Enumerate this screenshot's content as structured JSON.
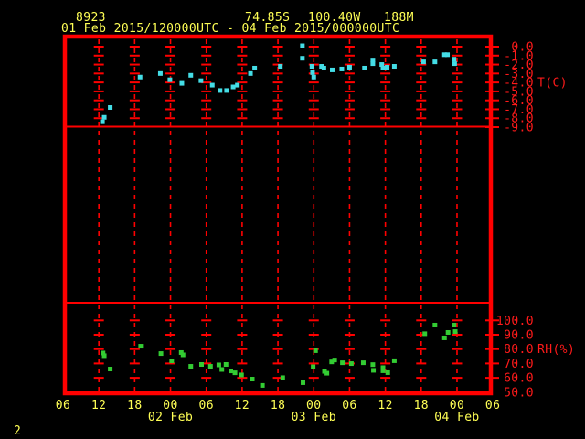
{
  "header": {
    "station_id": "8923",
    "latitude": "74.85S",
    "longitude": "100.40W",
    "elevation": "188M",
    "time_range": "01 Feb 2015/120000UTC - 04 Feb 2015/000000UTC"
  },
  "page_number": "2",
  "colors": {
    "background": "#000000",
    "axis": "#FF0000",
    "axis_text": "#FF1A1A",
    "label_yellow": "#FFFF55",
    "temperature_series": "#44DDE6",
    "humidity_series": "#33CC33"
  },
  "x_axis": {
    "hour_labels": [
      "06",
      "12",
      "18",
      "00",
      "06",
      "12",
      "18",
      "00",
      "06",
      "12",
      "18",
      "00",
      "06"
    ],
    "date_labels": [
      {
        "label": "02 Feb",
        "t": 24
      },
      {
        "label": "03 Feb",
        "t": 48
      },
      {
        "label": "04 Feb",
        "t": 72
      }
    ],
    "start_hour": 6,
    "end_hour": 78,
    "tick_interval_hours": 6
  },
  "panels": {
    "temperature": {
      "axis_label": "T(C)",
      "tick_labels": [
        "0.0",
        "-1.0",
        "-2.0",
        "-3.0",
        "-4.0",
        "-5.0",
        "-6.0",
        "-7.0",
        "-8.0",
        "-9.0"
      ],
      "tick_values": [
        0,
        -1,
        -2,
        -3,
        -4,
        -5,
        -6,
        -7,
        -8,
        -9
      ]
    },
    "humidity": {
      "axis_label": "RH(%)",
      "tick_labels": [
        "100.0",
        "90.0",
        "80.0",
        "70.0",
        "60.0",
        "50.0"
      ],
      "tick_values": [
        100,
        90,
        80,
        70,
        60,
        50
      ]
    }
  },
  "chart_data": {
    "type": "scatter",
    "title": "8923  74.85S 100.40W 188M",
    "subtitle": "01 Feb 2015/120000UTC - 04 Feb 2015/000000UTC",
    "x_unit": "hours since 01 Feb 2015 00UTC",
    "xlim": [
      6,
      78
    ],
    "grid": "dashed vertical every 6 hours",
    "legend_position": "right axis labels",
    "series": [
      {
        "name": "T(C)",
        "marker_name": "temperature-point",
        "color": "#44DDE6",
        "ylim": [
          0,
          -9
        ],
        "points": [
          [
            12.6,
            -8.4
          ],
          [
            12.9,
            -7.9
          ],
          [
            13.9,
            -6.8
          ],
          [
            18.9,
            -3.4
          ],
          [
            22.3,
            -3.0
          ],
          [
            23.9,
            -3.7
          ],
          [
            25.9,
            -4.1
          ],
          [
            27.4,
            -3.2
          ],
          [
            29.1,
            -3.8
          ],
          [
            31.0,
            -4.3
          ],
          [
            32.3,
            -4.9
          ],
          [
            33.4,
            -4.9
          ],
          [
            34.5,
            -4.5
          ],
          [
            35.2,
            -4.3
          ],
          [
            37.4,
            -3.0
          ],
          [
            38.1,
            -2.4
          ],
          [
            42.4,
            -2.2
          ],
          [
            46.1,
            0.1
          ],
          [
            46.1,
            -1.3
          ],
          [
            47.7,
            -2.2
          ],
          [
            47.8,
            -2.9
          ],
          [
            48.0,
            -3.4
          ],
          [
            49.3,
            -2.2
          ],
          [
            49.7,
            -2.4
          ],
          [
            51.1,
            -2.6
          ],
          [
            52.7,
            -2.5
          ],
          [
            54.0,
            -2.3
          ],
          [
            56.5,
            -2.4
          ],
          [
            57.9,
            -1.5
          ],
          [
            57.9,
            -1.9
          ],
          [
            59.4,
            -2.0
          ],
          [
            59.6,
            -2.4
          ],
          [
            60.3,
            -2.3
          ],
          [
            61.5,
            -2.2
          ],
          [
            66.4,
            -1.7
          ],
          [
            68.3,
            -1.7
          ],
          [
            69.9,
            -0.9
          ],
          [
            70.4,
            -0.9
          ],
          [
            71.5,
            -1.4
          ],
          [
            71.6,
            -1.9
          ]
        ]
      },
      {
        "name": "RH(%)",
        "marker_name": "humidity-point",
        "color": "#33CC33",
        "ylim": [
          100,
          50
        ],
        "points": [
          [
            12.7,
            77.3
          ],
          [
            12.9,
            75.4
          ],
          [
            13.9,
            66.1
          ],
          [
            19.0,
            82.0
          ],
          [
            22.4,
            76.9
          ],
          [
            24.2,
            71.8
          ],
          [
            25.8,
            77.6
          ],
          [
            26.1,
            76.0
          ],
          [
            27.4,
            68.0
          ],
          [
            29.2,
            69.3
          ],
          [
            30.7,
            68.0
          ],
          [
            32.1,
            69.0
          ],
          [
            32.6,
            65.8
          ],
          [
            33.3,
            69.3
          ],
          [
            34.1,
            64.8
          ],
          [
            34.8,
            63.5
          ],
          [
            35.9,
            62.0
          ],
          [
            37.7,
            59.1
          ],
          [
            39.4,
            54.7
          ],
          [
            42.8,
            60.1
          ],
          [
            46.2,
            56.6
          ],
          [
            47.9,
            67.7
          ],
          [
            48.3,
            78.9
          ],
          [
            49.8,
            64.5
          ],
          [
            50.2,
            63.2
          ],
          [
            51.0,
            71.1
          ],
          [
            51.5,
            72.4
          ],
          [
            52.8,
            70.5
          ],
          [
            54.3,
            69.9
          ],
          [
            56.3,
            70.5
          ],
          [
            57.9,
            69.2
          ],
          [
            58.0,
            65.2
          ],
          [
            59.6,
            67.1
          ],
          [
            59.6,
            64.9
          ],
          [
            60.4,
            63.6
          ],
          [
            61.5,
            71.9
          ],
          [
            66.6,
            90.7
          ],
          [
            68.3,
            96.7
          ],
          [
            69.9,
            87.8
          ],
          [
            70.5,
            91.6
          ],
          [
            71.5,
            96.7
          ],
          [
            71.7,
            92.2
          ]
        ]
      }
    ]
  }
}
